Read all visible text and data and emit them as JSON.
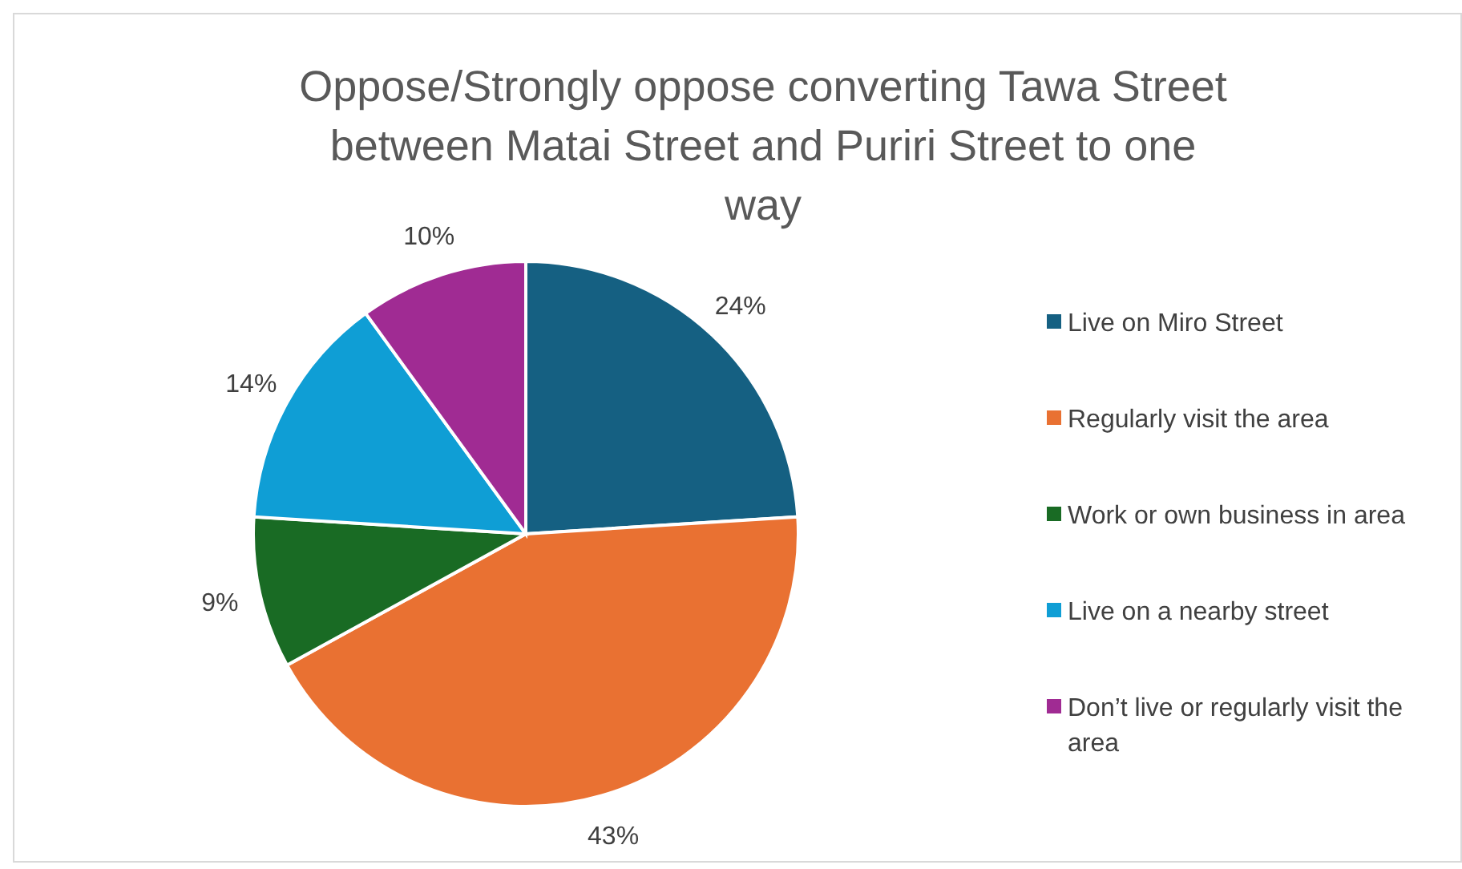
{
  "chart_data": {
    "type": "pie",
    "title": "Oppose/Strongly oppose converting Tawa Street between Matai Street and Puriri Street to one way",
    "categories": [
      "Live on Miro Street",
      "Regularly visit the area",
      "Work or own business in area",
      "Live on a nearby street",
      "Don’t live or regularly visit the area"
    ],
    "values": [
      24,
      43,
      9,
      14,
      10
    ],
    "value_labels": [
      "24%",
      "43%",
      "9%",
      "14%",
      "10%"
    ],
    "colors": [
      "#156082",
      "#e97132",
      "#196b24",
      "#0f9ed5",
      "#a02b93"
    ],
    "legend": "right"
  }
}
